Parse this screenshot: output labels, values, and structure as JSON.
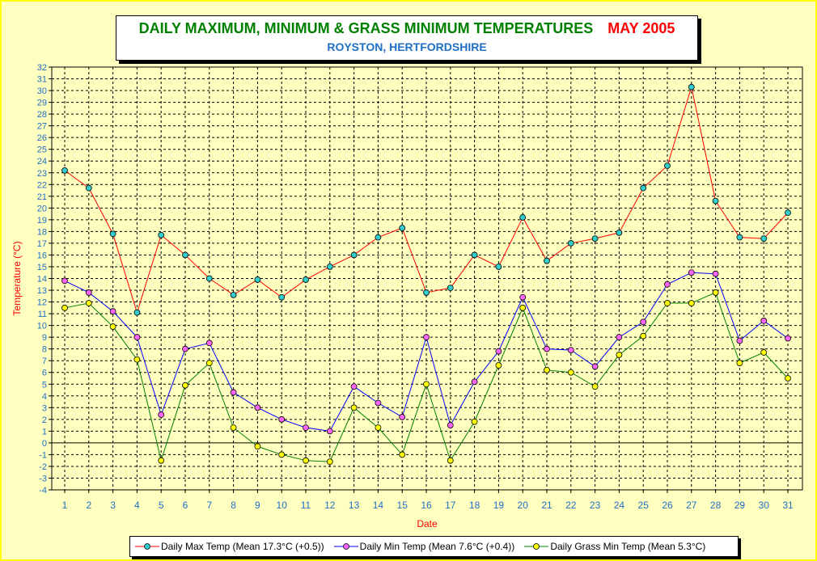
{
  "title": "DAILY MAXIMUM, MINIMUM & GRASS MINIMUM TEMPERATURES",
  "title_date": "MAY 2005",
  "subtitle": "ROYSTON, HERTFORDSHIRE",
  "colors": {
    "background": "#ffffc0",
    "title_main": "#008000",
    "title_date": "#ff0000",
    "subtitle": "#1f6fc6",
    "max_line": "#ff0000",
    "max_marker": "#33cccc",
    "min_line": "#0000ff",
    "min_marker": "#ff66ff",
    "grass_line": "#008000",
    "grass_marker": "#ffff00",
    "axis_labels": "#1f6fc6",
    "axis_title": "#ff0000"
  },
  "chart_data": {
    "type": "line",
    "title": "DAILY MAXIMUM, MINIMUM & GRASS MINIMUM TEMPERATURES",
    "xlabel": "Date",
    "ylabel": "Temperature (°C)",
    "ylim": [
      -4,
      32
    ],
    "grid": true,
    "legend_position": "bottom",
    "x": [
      1,
      2,
      3,
      4,
      5,
      6,
      7,
      8,
      9,
      10,
      11,
      12,
      13,
      14,
      15,
      16,
      17,
      18,
      19,
      20,
      21,
      22,
      23,
      24,
      25,
      26,
      27,
      28,
      29,
      30,
      31
    ],
    "y_ticks": [
      -4,
      -3,
      -2,
      -1,
      0,
      1,
      2,
      3,
      4,
      5,
      6,
      7,
      8,
      9,
      10,
      11,
      12,
      13,
      14,
      15,
      16,
      17,
      18,
      19,
      20,
      21,
      22,
      23,
      24,
      25,
      26,
      27,
      28,
      29,
      30,
      31,
      32
    ],
    "series": [
      {
        "name": "Daily Max Temp (Mean 17.3°C (+0.5))",
        "line_color": "#ff0000",
        "marker_color": "#33cccc",
        "values": [
          23.2,
          21.7,
          17.8,
          11.1,
          17.7,
          16.0,
          14.0,
          12.6,
          13.9,
          12.4,
          13.9,
          15.0,
          16.0,
          17.5,
          18.3,
          12.8,
          13.2,
          16.0,
          15.0,
          19.2,
          15.5,
          17.0,
          17.4,
          17.9,
          21.7,
          23.6,
          30.3,
          20.6,
          17.5,
          17.4,
          19.6
        ]
      },
      {
        "name": "Daily Min Temp (Mean 7.6°C (+0.4))",
        "line_color": "#0000ff",
        "marker_color": "#ff66ff",
        "values": [
          13.8,
          12.8,
          11.2,
          9.0,
          2.4,
          8.0,
          8.5,
          4.3,
          3.0,
          2.0,
          1.3,
          1.0,
          4.8,
          3.4,
          2.2,
          9.0,
          1.5,
          5.2,
          7.8,
          12.4,
          8.0,
          7.9,
          6.5,
          9.0,
          10.3,
          13.5,
          14.5,
          14.4,
          8.7,
          10.4,
          8.9
        ]
      },
      {
        "name": "Daily Grass Min Temp (Mean 5.3°C)",
        "line_color": "#008000",
        "marker_color": "#ffff00",
        "values": [
          11.5,
          11.9,
          9.9,
          7.1,
          -1.5,
          4.9,
          6.8,
          1.3,
          -0.3,
          -1.0,
          -1.5,
          -1.6,
          3.0,
          1.3,
          -1.0,
          5.0,
          -1.5,
          1.8,
          6.6,
          11.5,
          6.2,
          6.0,
          4.8,
          7.5,
          9.1,
          11.9,
          11.9,
          12.8,
          6.8,
          7.7,
          5.5
        ]
      }
    ]
  }
}
